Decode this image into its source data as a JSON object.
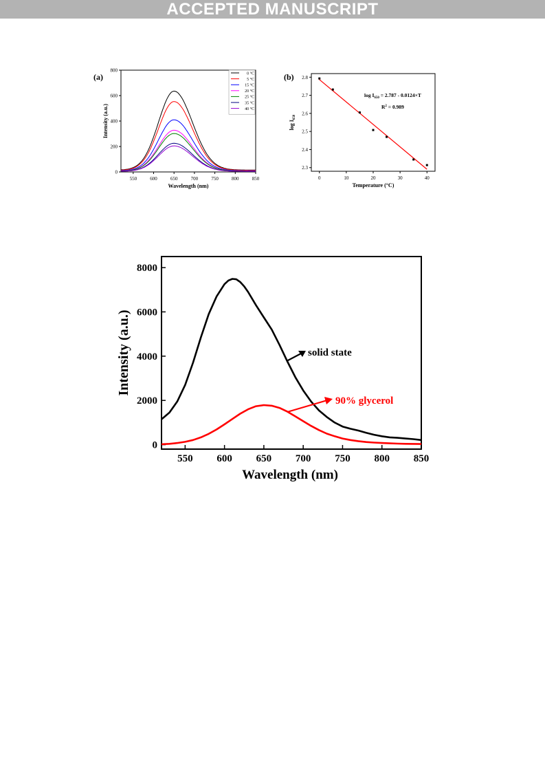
{
  "banner": "ACCEPTED MANUSCRIPT",
  "chart_data": [
    {
      "panel_label": "(a)",
      "type": "line",
      "xlabel": "Wavelength (nm)",
      "ylabel": "Intensity (a.u.)",
      "xlim": [
        520,
        850
      ],
      "ylim": [
        0,
        800
      ],
      "xticks": [
        550,
        600,
        650,
        700,
        750,
        800,
        850
      ],
      "yticks": [
        0,
        200,
        400,
        600,
        800
      ],
      "peak_wavelength": 650,
      "legend_position": "top-right",
      "series": [
        {
          "name": "0 °C",
          "peak": 620,
          "color": "#000000"
        },
        {
          "name": "5 °C",
          "peak": 540,
          "color": "#ff0000"
        },
        {
          "name": "15 °C",
          "peak": 400,
          "color": "#0000ff"
        },
        {
          "name": "20 °C",
          "peak": 320,
          "color": "#ff00ff"
        },
        {
          "name": "25 °C",
          "peak": 295,
          "color": "#008000"
        },
        {
          "name": "35 °C",
          "peak": 220,
          "color": "#000080"
        },
        {
          "name": "40 °C",
          "peak": 200,
          "color": "#9400d3"
        }
      ]
    },
    {
      "panel_label": "(b)",
      "type": "scatter",
      "xlabel": "Temperature (°C)",
      "ylabel_main": "log I",
      "ylabel_sub": "650",
      "xlim": [
        -3,
        43
      ],
      "ylim": [
        2.28,
        2.82
      ],
      "xticks": [
        0,
        10,
        20,
        30,
        40
      ],
      "yticks": [
        2.3,
        2.4,
        2.5,
        2.6,
        2.7,
        2.8
      ],
      "points": [
        {
          "x": 0,
          "y": 2.793
        },
        {
          "x": 5,
          "y": 2.732
        },
        {
          "x": 15,
          "y": 2.605
        },
        {
          "x": 20,
          "y": 2.508
        },
        {
          "x": 25,
          "y": 2.47
        },
        {
          "x": 35,
          "y": 2.345
        },
        {
          "x": 40,
          "y": 2.314
        }
      ],
      "fit": {
        "intercept": 2.787,
        "slope": -0.0124,
        "color": "#ff0000"
      },
      "equation_main": "log I",
      "equation_sub": "650",
      "equation_rest": " = 2.787 - 0.0124×T",
      "r2_label": "R",
      "r2_sup": "2",
      "r2_rest": " = 0.989"
    },
    {
      "type": "line",
      "xlabel": "Wavelength (nm)",
      "ylabel": "Intensity (a.u.)",
      "xlim": [
        520,
        850
      ],
      "ylim": [
        -200,
        8500
      ],
      "xticks": [
        550,
        600,
        650,
        700,
        750,
        800,
        850
      ],
      "yticks": [
        0,
        2000,
        4000,
        6000,
        8000
      ],
      "series": [
        {
          "name": "solid state",
          "color": "#000000",
          "x": [
            520,
            530,
            540,
            550,
            560,
            570,
            580,
            590,
            600,
            605,
            610,
            615,
            620,
            625,
            630,
            640,
            650,
            660,
            670,
            680,
            690,
            700,
            710,
            720,
            730,
            740,
            750,
            760,
            770,
            780,
            790,
            800,
            810,
            820,
            830,
            840,
            850
          ],
          "y": [
            1150,
            1450,
            1950,
            2700,
            3700,
            4850,
            5900,
            6700,
            7250,
            7420,
            7490,
            7470,
            7350,
            7150,
            6900,
            6300,
            5750,
            5200,
            4500,
            3750,
            3050,
            2450,
            1950,
            1550,
            1250,
            1000,
            820,
            720,
            640,
            540,
            450,
            380,
            330,
            310,
            280,
            250,
            210
          ]
        },
        {
          "name": "90% glycerol",
          "color": "#ff0000",
          "x": [
            520,
            530,
            540,
            550,
            560,
            570,
            580,
            590,
            600,
            610,
            620,
            630,
            640,
            650,
            660,
            670,
            680,
            690,
            700,
            710,
            720,
            730,
            740,
            750,
            760,
            770,
            780,
            790,
            800,
            810,
            820,
            830,
            840,
            850
          ],
          "y": [
            20,
            40,
            75,
            130,
            210,
            330,
            490,
            690,
            920,
            1160,
            1400,
            1600,
            1740,
            1790,
            1760,
            1660,
            1490,
            1280,
            1060,
            850,
            660,
            500,
            380,
            280,
            210,
            160,
            120,
            95,
            75,
            60,
            50,
            40,
            35,
            30
          ]
        }
      ]
    }
  ]
}
